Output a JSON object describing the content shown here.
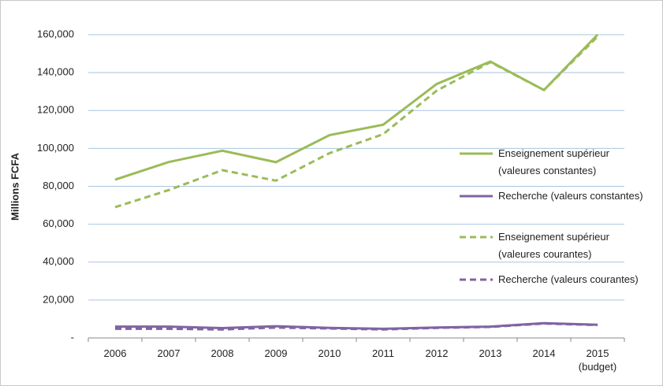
{
  "chart_data": {
    "type": "line",
    "y_label": "Millions FCFA",
    "categories": [
      "2006",
      "2007",
      "2008",
      "2009",
      "2010",
      "2011",
      "2012",
      "2013",
      "2014",
      "2015\n(budget)"
    ],
    "series": [
      {
        "name": "Enseignement supérieur (valeures constantes)",
        "color": "#9bbb59",
        "dashed": false,
        "values": [
          83500,
          92800,
          98800,
          92700,
          107000,
          112500,
          134000,
          145800,
          130800,
          160000
        ]
      },
      {
        "name": "Recherche (valeurs constantes)",
        "color": "#8064a2",
        "dashed": false,
        "values": [
          6000,
          6000,
          5200,
          6200,
          5300,
          4800,
          5500,
          6000,
          7800,
          7000
        ]
      },
      {
        "name": "Enseignement supérieur (valeures courantes)",
        "color": "#9bbb59",
        "dashed": true,
        "values": [
          69000,
          78000,
          88500,
          83000,
          97500,
          107500,
          130500,
          145500,
          130800,
          159000
        ]
      },
      {
        "name": "Recherche (valeurs courantes)",
        "color": "#8064a2",
        "dashed": true,
        "values": [
          4800,
          4800,
          4500,
          5500,
          5000,
          4500,
          5300,
          5800,
          7600,
          6800
        ]
      }
    ],
    "ylim": [
      0,
      160000
    ],
    "yticks": [
      {
        "value": 0,
        "label": "-"
      },
      {
        "value": 20000,
        "label": "20,000"
      },
      {
        "value": 40000,
        "label": "40,000"
      },
      {
        "value": 60000,
        "label": "60,000"
      },
      {
        "value": 80000,
        "label": "80,000"
      },
      {
        "value": 100000,
        "label": "100,000"
      },
      {
        "value": 120000,
        "label": "120,000"
      },
      {
        "value": 140000,
        "label": "140,000"
      },
      {
        "value": 160000,
        "label": "160,000"
      }
    ],
    "grid": true
  }
}
